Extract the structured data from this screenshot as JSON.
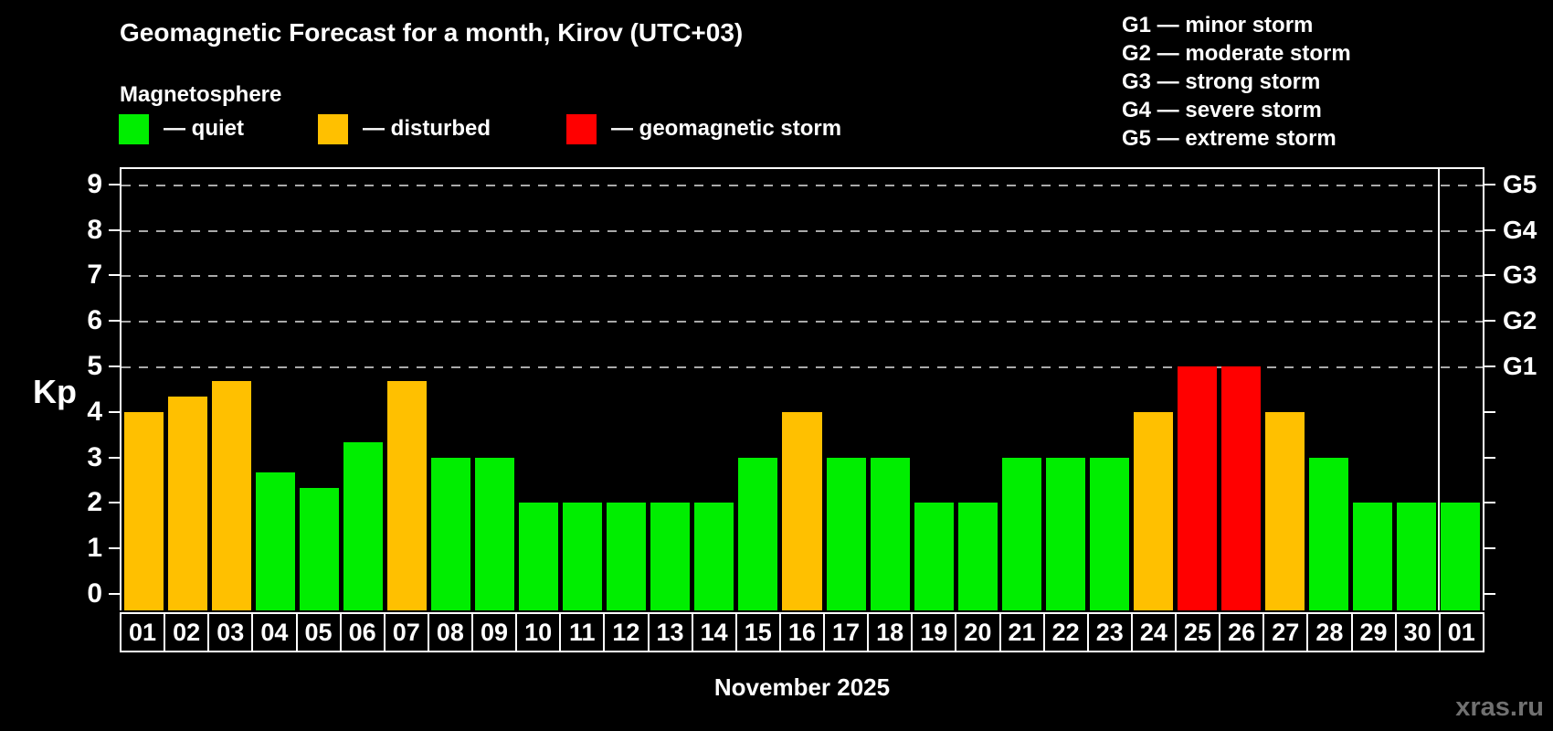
{
  "title": "Geomagnetic Forecast for a month, Kirov (UTC+03)",
  "subtitle": "Magnetosphere",
  "legend": {
    "items": [
      {
        "name": "quiet",
        "label": "— quiet",
        "color": "#00ee00"
      },
      {
        "name": "disturbed",
        "label": "— disturbed",
        "color": "#ffc000"
      },
      {
        "name": "storm",
        "label": "— geomagnetic storm",
        "color": "#ff0000"
      }
    ]
  },
  "g_legend": [
    "G1 — minor storm",
    "G2 — moderate storm",
    "G3 — strong storm",
    "G4 — severe storm",
    "G5 — extreme storm"
  ],
  "axes": {
    "y_label": "Kp",
    "y_ticks": [
      "0",
      "1",
      "2",
      "3",
      "4",
      "5",
      "6",
      "7",
      "8",
      "9"
    ],
    "right_labels": [
      {
        "label": "G1",
        "value": 5
      },
      {
        "label": "G2",
        "value": 6
      },
      {
        "label": "G3",
        "value": 7
      },
      {
        "label": "G4",
        "value": 8
      },
      {
        "label": "G5",
        "value": 9
      }
    ],
    "x_label": "November 2025"
  },
  "watermark": "xras.ru",
  "chart_data": {
    "type": "bar",
    "title": "Geomagnetic Forecast for a month, Kirov (UTC+03)",
    "xlabel": "November 2025",
    "ylabel": "Kp",
    "ylim": [
      0,
      9.4
    ],
    "grid": "dashed horizontal lines at Kp 5,6,7,8,9 (G1–G5)",
    "legend_position": "top-left (status colors), top-right (G scale)",
    "categories": [
      "01",
      "02",
      "03",
      "04",
      "05",
      "06",
      "07",
      "08",
      "09",
      "10",
      "11",
      "12",
      "13",
      "14",
      "15",
      "16",
      "17",
      "18",
      "19",
      "20",
      "21",
      "22",
      "23",
      "24",
      "25",
      "26",
      "27",
      "28",
      "29",
      "30",
      "01"
    ],
    "values": [
      4,
      4.33,
      4.67,
      2.67,
      2.33,
      3.33,
      4.67,
      3,
      3,
      2,
      2,
      2,
      2,
      2,
      3,
      4,
      3,
      3,
      2,
      2,
      3,
      3,
      3,
      4,
      5,
      5,
      4,
      3,
      2,
      2,
      2
    ],
    "statuses": [
      "disturbed",
      "disturbed",
      "disturbed",
      "quiet",
      "quiet",
      "quiet",
      "disturbed",
      "quiet",
      "quiet",
      "quiet",
      "quiet",
      "quiet",
      "quiet",
      "quiet",
      "quiet",
      "disturbed",
      "quiet",
      "quiet",
      "quiet",
      "quiet",
      "quiet",
      "quiet",
      "quiet",
      "disturbed",
      "storm",
      "storm",
      "disturbed",
      "quiet",
      "quiet",
      "quiet",
      "quiet"
    ],
    "status_colors": {
      "quiet": "#00ee00",
      "disturbed": "#ffc000",
      "storm": "#ff0000"
    },
    "month_boundary_after_index": 29
  }
}
